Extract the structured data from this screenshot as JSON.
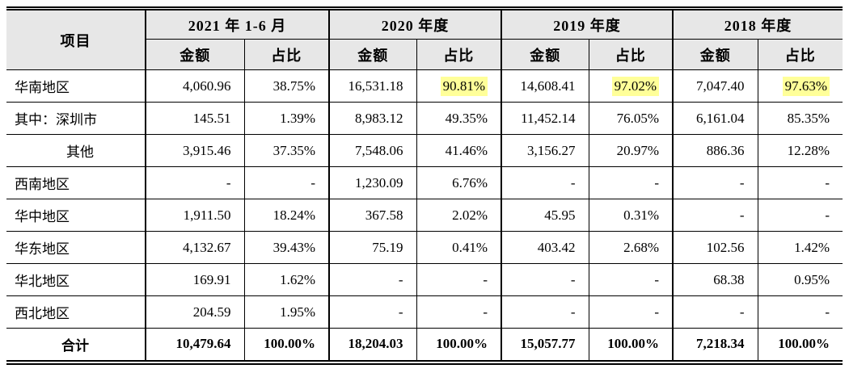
{
  "colors": {
    "header_bg": "#e7e7e7",
    "highlight_bg": "#ffff99",
    "border": "#000000"
  },
  "table": {
    "item_header": "项目",
    "col_groups": [
      {
        "label": "2021 年 1-6 月",
        "sub": [
          "金额",
          "占比"
        ]
      },
      {
        "label": "2020 年度",
        "sub": [
          "金额",
          "占比"
        ]
      },
      {
        "label": "2019 年度",
        "sub": [
          "金额",
          "占比"
        ]
      },
      {
        "label": "2018 年度",
        "sub": [
          "金额",
          "占比"
        ]
      }
    ],
    "rows": [
      {
        "label": "华南地区",
        "indent": false,
        "values": [
          "4,060.96",
          "38.75%",
          "16,531.18",
          "90.81%",
          "14,608.41",
          "97.02%",
          "7,047.40",
          "97.63%"
        ],
        "highlight": [
          3,
          5,
          7
        ]
      },
      {
        "label": "其中：深圳市",
        "indent": false,
        "values": [
          "145.51",
          "1.39%",
          "8,983.12",
          "49.35%",
          "11,452.14",
          "76.05%",
          "6,161.04",
          "85.35%"
        ],
        "highlight": []
      },
      {
        "label": "其他",
        "indent": true,
        "values": [
          "3,915.46",
          "37.35%",
          "7,548.06",
          "41.46%",
          "3,156.27",
          "20.97%",
          "886.36",
          "12.28%"
        ],
        "highlight": []
      },
      {
        "label": "西南地区",
        "indent": false,
        "values": [
          "-",
          "-",
          "1,230.09",
          "6.76%",
          "-",
          "-",
          "-",
          "-"
        ],
        "highlight": []
      },
      {
        "label": "华中地区",
        "indent": false,
        "values": [
          "1,911.50",
          "18.24%",
          "367.58",
          "2.02%",
          "45.95",
          "0.31%",
          "-",
          "-"
        ],
        "highlight": []
      },
      {
        "label": "华东地区",
        "indent": false,
        "values": [
          "4,132.67",
          "39.43%",
          "75.19",
          "0.41%",
          "403.42",
          "2.68%",
          "102.56",
          "1.42%"
        ],
        "highlight": []
      },
      {
        "label": "华北地区",
        "indent": false,
        "values": [
          "169.91",
          "1.62%",
          "-",
          "-",
          "-",
          "-",
          "68.38",
          "0.95%"
        ],
        "highlight": []
      },
      {
        "label": "西北地区",
        "indent": false,
        "values": [
          "204.59",
          "1.95%",
          "-",
          "-",
          "-",
          "-",
          "-",
          "-"
        ],
        "highlight": []
      }
    ],
    "total_row": {
      "label": "合计",
      "values": [
        "10,479.64",
        "100.00%",
        "18,204.03",
        "100.00%",
        "15,057.77",
        "100.00%",
        "7,218.34",
        "100.00%"
      ]
    }
  }
}
